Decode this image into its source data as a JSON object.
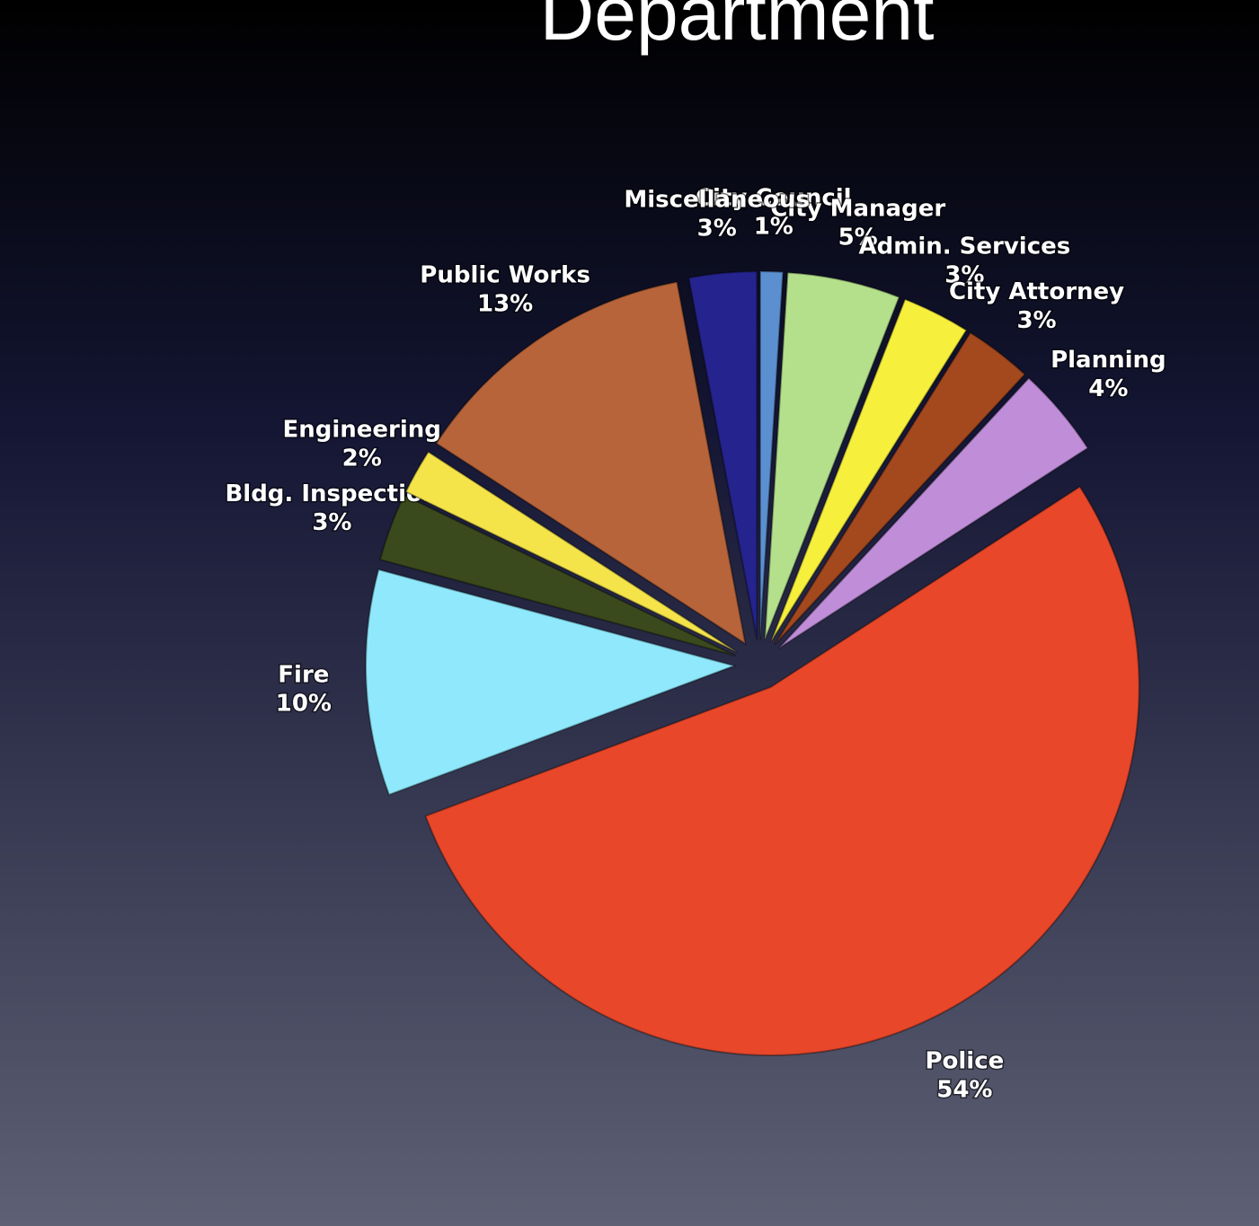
{
  "chart_data": {
    "type": "pie",
    "title": "Department",
    "categories": [
      "City Council",
      "City Manager",
      "Admin. Services",
      "City Attorney",
      "Planning",
      "Police",
      "Fire",
      "Bldg. Inspection",
      "Engineering",
      "Public Works",
      "Miscellaneous"
    ],
    "values": [
      1,
      5,
      3,
      3,
      4,
      54,
      10,
      3,
      2,
      13,
      3
    ],
    "value_labels": [
      "1%",
      "5%",
      "3%",
      "3%",
      "4%",
      "54%",
      "10%",
      "3%",
      "2%",
      "13%",
      "3%"
    ],
    "colors": [
      "#5b8fd0",
      "#b4e08c",
      "#f6ef3c",
      "#a4481e",
      "#c08ed8",
      "#e8472a",
      "#8fe8fb",
      "#3b4a1c",
      "#f4e44a",
      "#b8643a",
      "#25238e"
    ]
  }
}
